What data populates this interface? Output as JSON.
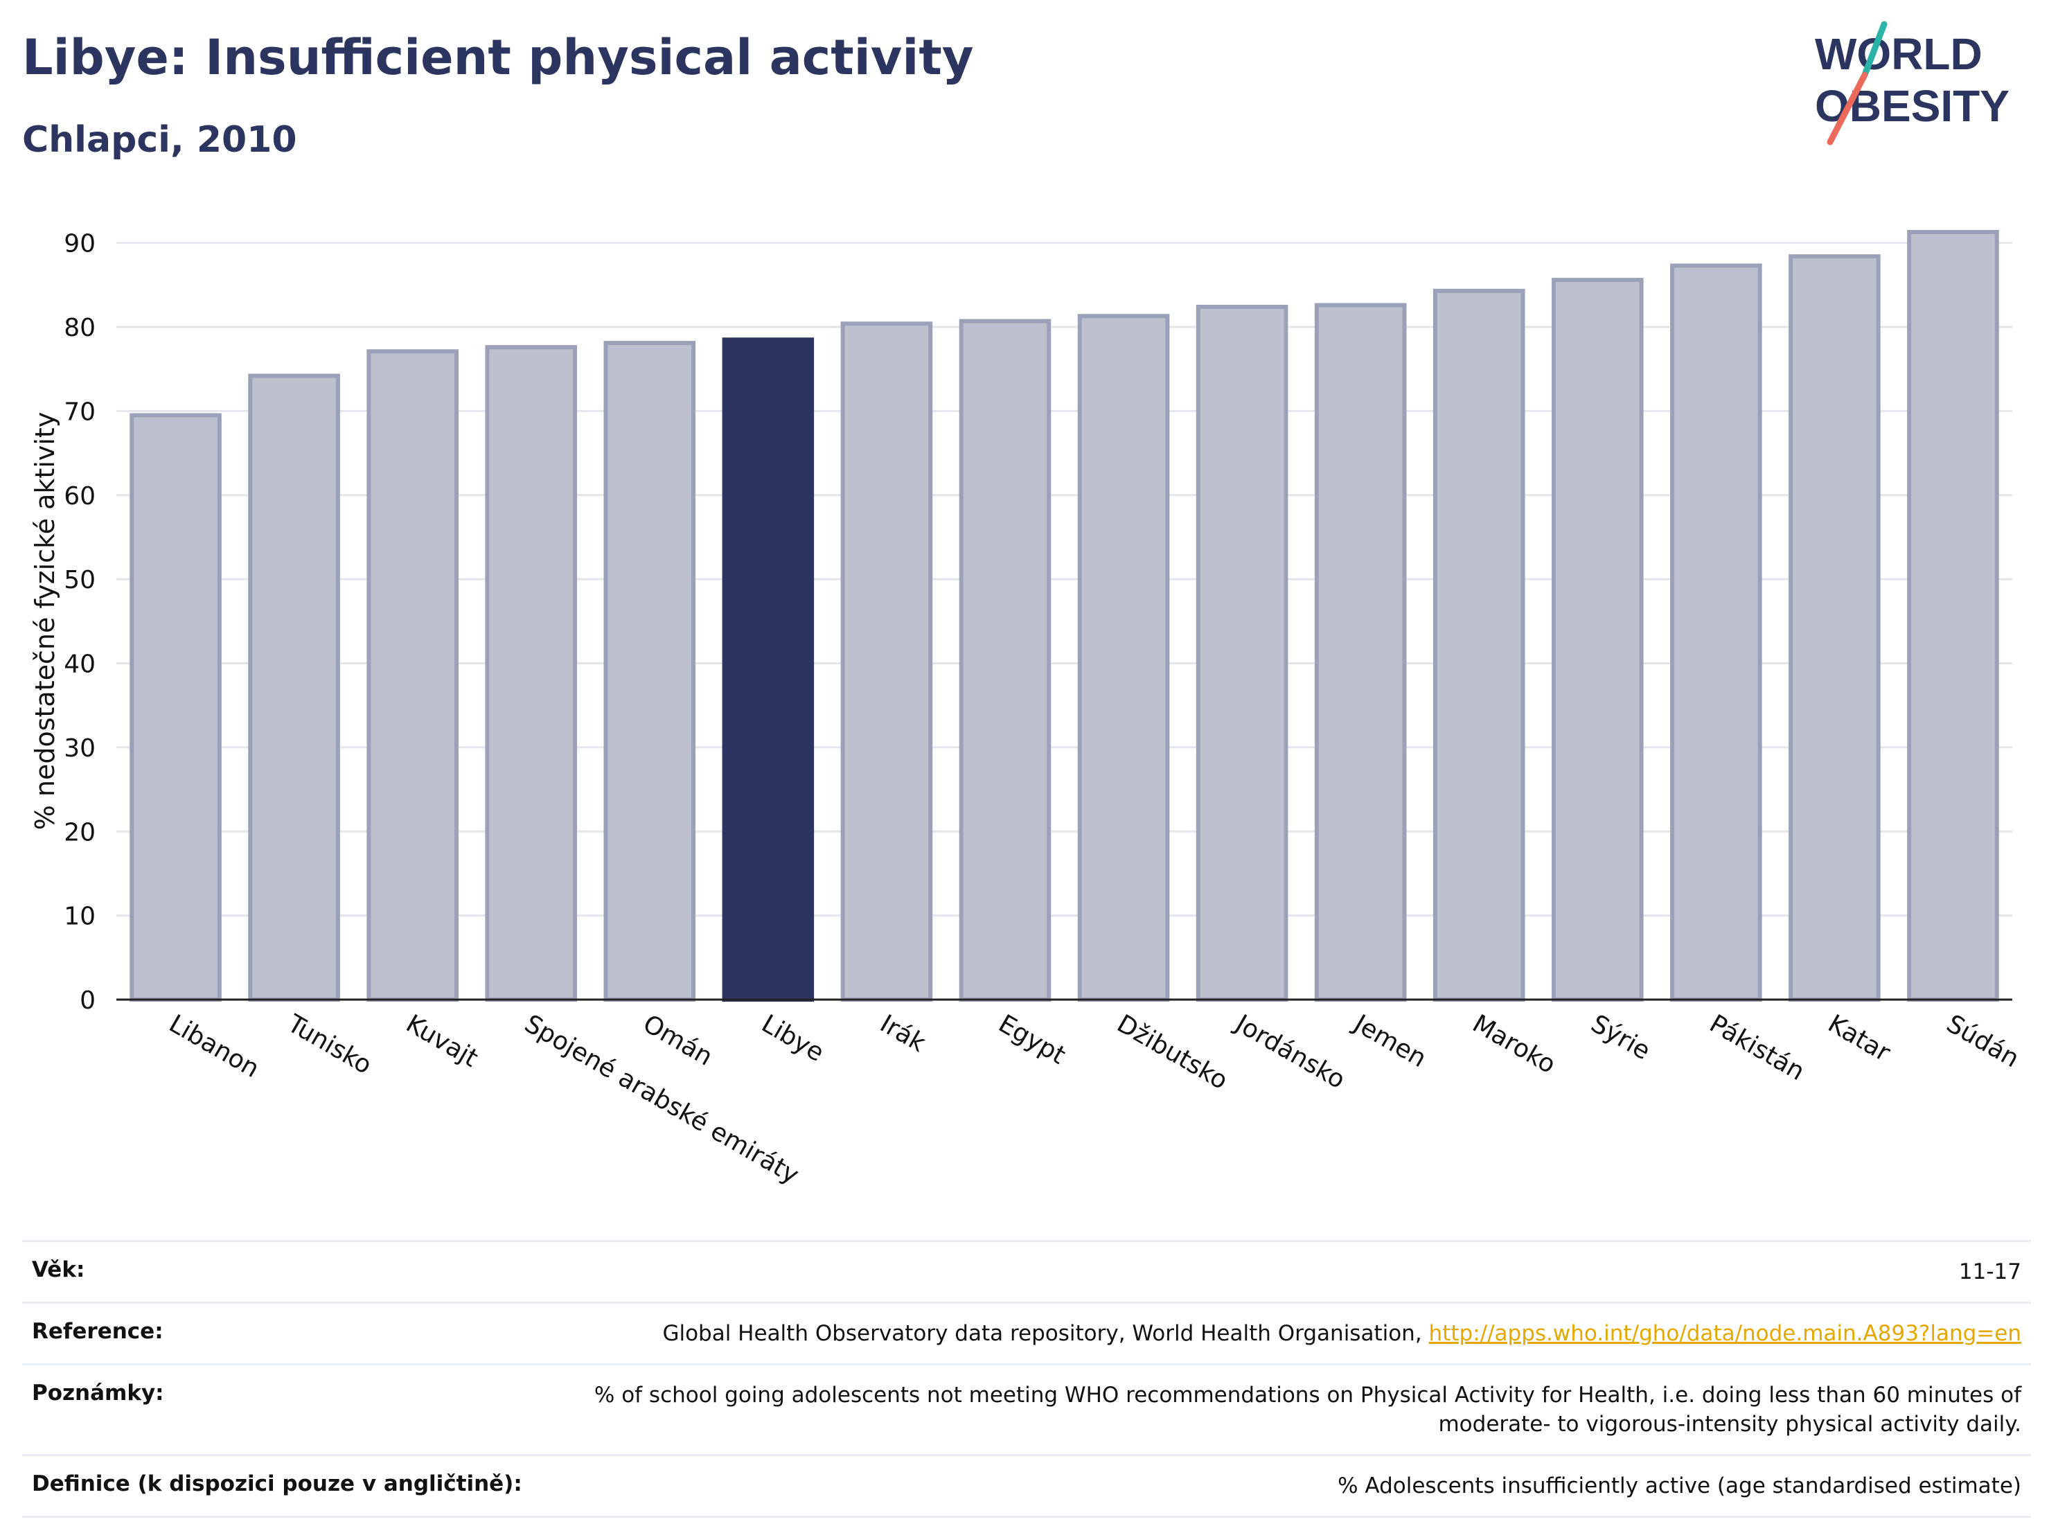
{
  "header": {
    "title": "Libye: Insufficient physical activity",
    "subtitle": "Chlapci, 2010"
  },
  "logo": {
    "line1": "WORLD",
    "line2": "OBESITY"
  },
  "chart_data": {
    "type": "bar",
    "categories": [
      "Libanon",
      "Tunisko",
      "Kuvajt",
      "Spojené arabské emiráty",
      "Omán",
      "Libye",
      "Irák",
      "Egypt",
      "Džibutsko",
      "Jordánsko",
      "Jemen",
      "Maroko",
      "Sýrie",
      "Pákistán",
      "Katar",
      "Súdán"
    ],
    "values": [
      69.5,
      74.2,
      77.1,
      77.6,
      78.1,
      78.5,
      80.4,
      80.7,
      81.3,
      82.4,
      82.6,
      84.3,
      85.6,
      87.3,
      88.4,
      91.3
    ],
    "highlight": "Libye",
    "ylabel": "% nedostatečné fyzické aktivity",
    "xlabel": "",
    "ylim": [
      0,
      95
    ],
    "yticks": [
      0,
      10,
      20,
      30,
      40,
      50,
      60,
      70,
      80,
      90
    ],
    "grid": true,
    "colors": {
      "bar": "#bdc1ce",
      "bar_edge": "#9aa1b8",
      "highlight": "#2b3560",
      "grid": "#e4e6ec",
      "axis": "#222222"
    }
  },
  "info": {
    "age_label": "Věk:",
    "age_value": "11-17",
    "reference_label": "Reference:",
    "reference_text": "Global Health Observatory data repository, World Health Organisation,",
    "reference_link": "http://apps.who.int/gho/data/node.main.A893?lang=en",
    "notes_label": "Poznámky:",
    "notes_value": "% of school going adolescents not meeting WHO recommendations on Physical Activity for Health, i.e. doing less than 60 minutes of moderate- to vigorous-intensity physical activity daily.",
    "definition_label": "Definice (k dispozici pouze v angličtině):",
    "definition_value": "% Adolescents insufficiently active (age standardised estimate)"
  }
}
